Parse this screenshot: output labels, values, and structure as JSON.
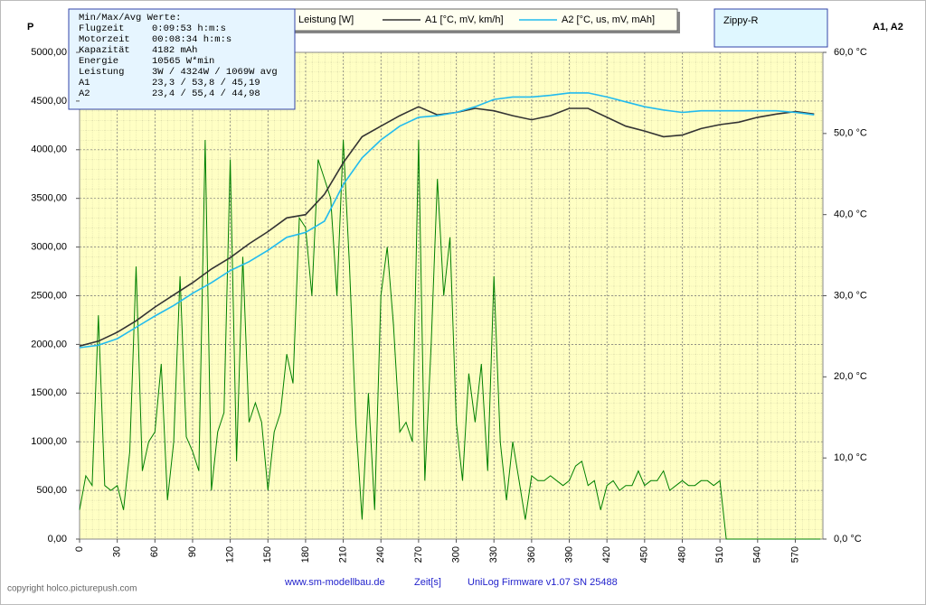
{
  "chart_data": {
    "type": "line",
    "title": "Zippy-R",
    "y_label": "P",
    "y2_label": "A1, A2",
    "x_label": "Zeit[s]",
    "footer_left": "www.sm-modellbau.de",
    "footer_right": "UniLog Firmware v1.07 SN 25488",
    "copyright": "copyright holco.picturepush.com",
    "info": {
      "title": "Min/Max/Avg Werte:",
      "rows": [
        [
          "Flugzeit",
          "0:09:53 h:m:s"
        ],
        [
          "Motorzeit",
          "00:08:34 h:m:s"
        ],
        [
          "Kapazität",
          "4182 mAh"
        ],
        [
          "Energie",
          "10565 W*min"
        ],
        [
          "Leistung",
          "3W / 4324W / 1069W avg"
        ],
        [
          "A1",
          "23,3 / 53,8 / 45,19"
        ],
        [
          "A2",
          "23,4 / 55,4 / 44,98"
        ]
      ]
    },
    "xlim": [
      0,
      592
    ],
    "xticks": [
      0,
      30,
      60,
      90,
      120,
      150,
      180,
      210,
      240,
      270,
      300,
      330,
      360,
      390,
      420,
      450,
      480,
      510,
      540,
      570
    ],
    "ylim": [
      0,
      5000
    ],
    "yticks": [
      {
        "value": 0,
        "label": "0,00"
      },
      {
        "value": 500,
        "label": "500,00"
      },
      {
        "value": 1000,
        "label": "1000,00"
      },
      {
        "value": 1500,
        "label": "1500,00"
      },
      {
        "value": 2000,
        "label": "2000,00"
      },
      {
        "value": 2500,
        "label": "2500,00"
      },
      {
        "value": 3000,
        "label": "3000,00"
      },
      {
        "value": 3500,
        "label": "3500,00"
      },
      {
        "value": 4000,
        "label": "4000,00"
      },
      {
        "value": 4500,
        "label": "4500,00"
      },
      {
        "value": 5000,
        "label": "5000,00"
      }
    ],
    "y2lim": [
      0,
      60
    ],
    "y2ticks": [
      {
        "value": 0,
        "label": "0,0 °C"
      },
      {
        "value": 10,
        "label": "10,0 °C"
      },
      {
        "value": 20,
        "label": "20,0 °C"
      },
      {
        "value": 30,
        "label": "30,0 °C"
      },
      {
        "value": 40,
        "label": "40,0 °C"
      },
      {
        "value": 50,
        "label": "50,0 °C"
      },
      {
        "value": 60,
        "label": "60,0 °C"
      }
    ],
    "grid": true,
    "series": [
      {
        "name": "Leistung [W]",
        "color": "#008000",
        "x": [
          0,
          5,
          10,
          15,
          20,
          25,
          30,
          35,
          40,
          45,
          50,
          55,
          60,
          65,
          70,
          75,
          80,
          85,
          90,
          95,
          100,
          105,
          110,
          115,
          120,
          125,
          130,
          135,
          140,
          145,
          150,
          155,
          160,
          165,
          170,
          175,
          180,
          185,
          190,
          195,
          200,
          205,
          210,
          215,
          220,
          225,
          230,
          235,
          240,
          245,
          250,
          255,
          260,
          265,
          270,
          275,
          280,
          285,
          290,
          295,
          300,
          305,
          310,
          315,
          320,
          325,
          330,
          335,
          340,
          345,
          350,
          355,
          360,
          365,
          370,
          375,
          380,
          385,
          390,
          395,
          400,
          405,
          410,
          415,
          420,
          425,
          430,
          435,
          440,
          445,
          450,
          455,
          460,
          465,
          470,
          475,
          480,
          485,
          490,
          495,
          500,
          505,
          510,
          515,
          520,
          525,
          530,
          535,
          540,
          545,
          550,
          555,
          560,
          565,
          570,
          575,
          580,
          585,
          590
        ],
        "values": [
          300,
          650,
          550,
          2300,
          550,
          500,
          550,
          300,
          900,
          2800,
          700,
          1000,
          1100,
          1800,
          400,
          1000,
          2700,
          1050,
          900,
          700,
          4100,
          500,
          1100,
          1300,
          3900,
          800,
          2900,
          1200,
          1400,
          1200,
          500,
          1100,
          1300,
          1900,
          1600,
          3300,
          3200,
          2500,
          3900,
          3700,
          3500,
          2500,
          4100,
          2800,
          1200,
          200,
          1500,
          300,
          2500,
          3000,
          2200,
          1100,
          1200,
          1000,
          4100,
          600,
          2000,
          3700,
          2500,
          3100,
          1200,
          600,
          1700,
          1200,
          1800,
          700,
          2700,
          1000,
          400,
          1000,
          600,
          200,
          650,
          600,
          600,
          650,
          600,
          550,
          600,
          750,
          800,
          550,
          600,
          300,
          550,
          600,
          500,
          550,
          550,
          700,
          550,
          600,
          600,
          700,
          500,
          550,
          600,
          550,
          550,
          600,
          600,
          550,
          600,
          0,
          0,
          0,
          0,
          0,
          0,
          0,
          0,
          0,
          0,
          0,
          0,
          0,
          0,
          0,
          0
        ]
      },
      {
        "name": "A1 [°C, mV, km/h]",
        "color": "#333333",
        "axis": "y2",
        "x": [
          0,
          15,
          30,
          45,
          60,
          75,
          90,
          105,
          120,
          135,
          150,
          165,
          180,
          195,
          210,
          225,
          240,
          255,
          270,
          285,
          300,
          315,
          330,
          345,
          360,
          375,
          390,
          405,
          420,
          435,
          450,
          465,
          480,
          495,
          510,
          525,
          540,
          555,
          570,
          585
        ],
        "values": [
          23.8,
          24.4,
          25.5,
          26.9,
          28.6,
          30.1,
          31.6,
          33.3,
          34.7,
          36.4,
          37.9,
          39.6,
          40.0,
          42.5,
          46.4,
          49.6,
          50.9,
          52.2,
          53.3,
          52.3,
          52.6,
          53.1,
          52.8,
          52.2,
          51.7,
          52.2,
          53.1,
          53.1,
          52.0,
          50.9,
          50.3,
          49.6,
          49.8,
          50.6,
          51.1,
          51.4,
          52.0,
          52.4,
          52.7,
          52.4
        ]
      },
      {
        "name": "A2 [°C, us, mV, mAh]",
        "color": "#22bbee",
        "axis": "y2",
        "x": [
          0,
          15,
          30,
          45,
          60,
          75,
          90,
          105,
          120,
          135,
          150,
          165,
          180,
          195,
          210,
          225,
          240,
          255,
          270,
          285,
          300,
          315,
          330,
          345,
          360,
          375,
          390,
          405,
          420,
          435,
          450,
          465,
          480,
          495,
          510,
          525,
          540,
          555,
          570,
          585
        ],
        "values": [
          23.6,
          23.9,
          24.7,
          26.1,
          27.5,
          28.8,
          30.3,
          31.6,
          33.1,
          34.2,
          35.6,
          37.2,
          37.8,
          39.2,
          43.7,
          47.0,
          49.2,
          50.9,
          52.0,
          52.2,
          52.6,
          53.3,
          54.2,
          54.5,
          54.5,
          54.7,
          55.0,
          55.0,
          54.5,
          53.9,
          53.3,
          52.9,
          52.6,
          52.8,
          52.8,
          52.8,
          52.8,
          52.8,
          52.6,
          52.3
        ]
      }
    ]
  }
}
